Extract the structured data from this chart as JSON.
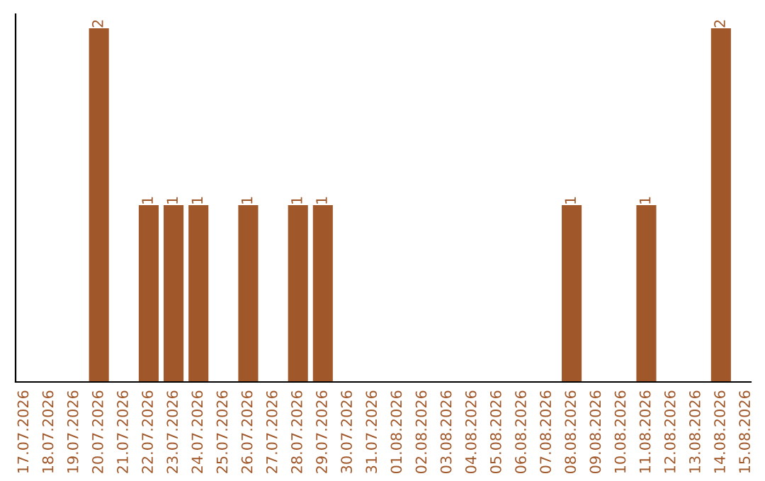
{
  "chart_data": {
    "type": "bar",
    "categories": [
      "17.07.2026",
      "18.07.2026",
      "19.07.2026",
      "20.07.2026",
      "21.07.2026",
      "22.07.2026",
      "23.07.2026",
      "24.07.2026",
      "25.07.2026",
      "26.07.2026",
      "27.07.2026",
      "28.07.2026",
      "29.07.2026",
      "30.07.2026",
      "31.07.2026",
      "01.08.2026",
      "02.08.2026",
      "03.08.2026",
      "04.08.2026",
      "05.08.2026",
      "06.08.2026",
      "07.08.2026",
      "08.08.2026",
      "09.08.2026",
      "10.08.2026",
      "11.08.2026",
      "12.08.2026",
      "13.08.2026",
      "14.08.2026",
      "15.08.2026"
    ],
    "values": [
      0,
      0,
      0,
      2,
      0,
      1,
      1,
      1,
      0,
      1,
      0,
      1,
      1,
      0,
      0,
      0,
      0,
      0,
      0,
      0,
      0,
      0,
      1,
      0,
      0,
      1,
      0,
      0,
      2,
      0
    ],
    "value_labels": [
      null,
      null,
      null,
      "2",
      null,
      "1",
      "1",
      "1",
      null,
      "1",
      null,
      "1",
      "1",
      null,
      null,
      null,
      null,
      null,
      null,
      null,
      null,
      null,
      "1",
      null,
      null,
      "1",
      null,
      null,
      "2",
      null
    ],
    "color": "#a0582a",
    "ylim": [
      0,
      2.08
    ],
    "tick_labels": "x",
    "grid": false,
    "legend": false
  }
}
